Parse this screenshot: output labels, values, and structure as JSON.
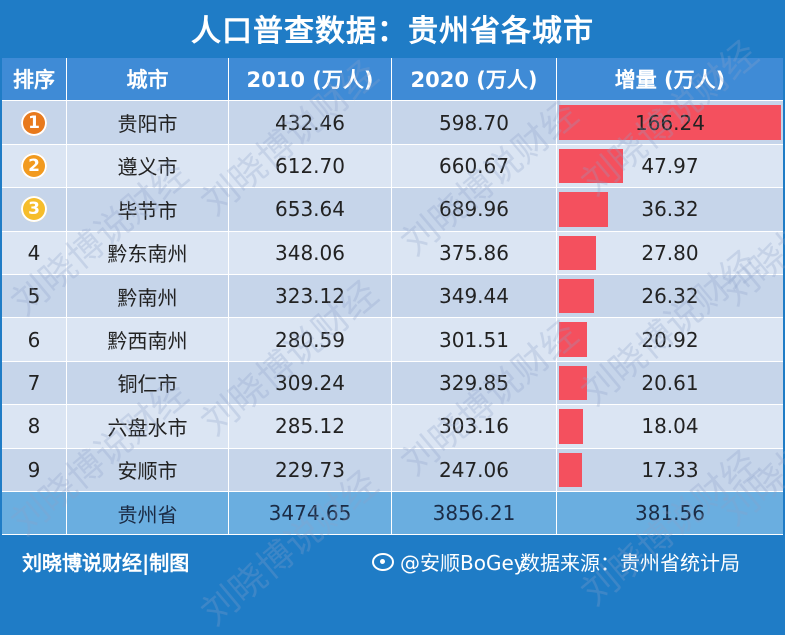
{
  "title": "人口普查数据：贵州省各城市",
  "headers": {
    "rank": "排序",
    "city": "城市",
    "y2010": "2010 (万人)",
    "y2020": "2020 (万人)",
    "increase": "增量 (万人)"
  },
  "rows": [
    {
      "rank": "1",
      "city": "贵阳市",
      "v2010": "432.46",
      "v2020": "598.70",
      "inc": "166.24"
    },
    {
      "rank": "2",
      "city": "遵义市",
      "v2010": "612.70",
      "v2020": "660.67",
      "inc": "47.97"
    },
    {
      "rank": "3",
      "city": "毕节市",
      "v2010": "653.64",
      "v2020": "689.96",
      "inc": "36.32"
    },
    {
      "rank": "4",
      "city": "黔东南州",
      "v2010": "348.06",
      "v2020": "375.86",
      "inc": "27.80"
    },
    {
      "rank": "5",
      "city": "黔南州",
      "v2010": "323.12",
      "v2020": "349.44",
      "inc": "26.32"
    },
    {
      "rank": "6",
      "city": "黔西南州",
      "v2010": "280.59",
      "v2020": "301.51",
      "inc": "20.92"
    },
    {
      "rank": "7",
      "city": "铜仁市",
      "v2010": "309.24",
      "v2020": "329.85",
      "inc": "20.61"
    },
    {
      "rank": "8",
      "city": "六盘水市",
      "v2010": "285.12",
      "v2020": "303.16",
      "inc": "18.04"
    },
    {
      "rank": "9",
      "city": "安顺市",
      "v2010": "229.73",
      "v2020": "247.06",
      "inc": "17.33"
    }
  ],
  "total": {
    "city": "贵州省",
    "v2010": "3474.65",
    "v2020": "3856.21",
    "inc": "381.56"
  },
  "footer": {
    "credit": "刘晓博说财经|制图",
    "weibo": "@安顺BoGey",
    "source": "数据来源：贵州省统计局"
  },
  "watermark_text": "刘晓博说财经",
  "colors": {
    "background": "#1f7cc6",
    "bar": "#f4505e",
    "medal_1": "#e8791c",
    "medal_2": "#f29a1e",
    "medal_3": "#f6bd2b"
  },
  "chart_data": {
    "type": "bar",
    "title": "人口普查数据：贵州省各城市",
    "categories": [
      "贵阳市",
      "遵义市",
      "毕节市",
      "黔东南州",
      "黔南州",
      "黔西南州",
      "铜仁市",
      "六盘水市",
      "安顺市"
    ],
    "series": [
      {
        "name": "增量 (万人)",
        "values": [
          166.24,
          47.97,
          36.32,
          27.8,
          26.32,
          20.92,
          20.61,
          18.04,
          17.33
        ]
      }
    ],
    "table_columns": [
      "2010 (万人)",
      "2020 (万人)"
    ],
    "v2010": [
      432.46,
      612.7,
      653.64,
      348.06,
      323.12,
      280.59,
      309.24,
      285.12,
      229.73
    ],
    "v2020": [
      598.7,
      660.67,
      689.96,
      375.86,
      349.44,
      301.51,
      329.85,
      303.16,
      247.06
    ]
  }
}
